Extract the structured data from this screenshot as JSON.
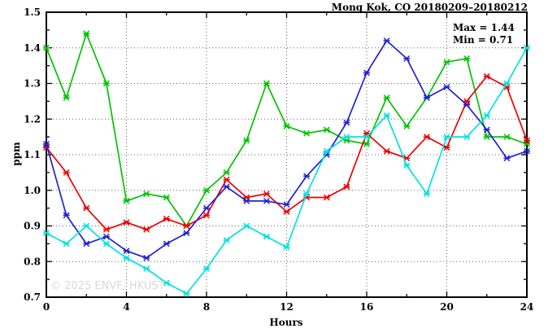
{
  "title": "Mong Kok, CO 20180209–20180212",
  "annotation": {
    "max_label": "Max = 1.44",
    "min_label": "Min = 0.71"
  },
  "watermark": "© 2025  ENVF, HKUST",
  "axes": {
    "xlabel": "Hours",
    "ylabel": "ppm",
    "x_tick_labels": [
      "0",
      "4",
      "8",
      "12",
      "16",
      "20",
      "24"
    ],
    "y_tick_labels": [
      "0.7",
      "0.8",
      "0.9",
      "1.0",
      "1.1",
      "1.2",
      "1.3",
      "1.4",
      "1.5"
    ]
  },
  "chart_data": {
    "type": "line",
    "title": "Mong Kok, CO 20180209–20180212",
    "xlabel": "Hours",
    "ylabel": "ppm",
    "xlim": [
      0,
      24
    ],
    "ylim": [
      0.7,
      1.5
    ],
    "x_major_ticks": [
      0,
      4,
      8,
      12,
      16,
      20,
      24
    ],
    "x_minor_step": 2,
    "y_major_step": 0.1,
    "y_minor_step": 0.05,
    "grid": true,
    "legend": "none",
    "annotations": [
      "Max = 1.44",
      "Min = 0.71"
    ],
    "x": [
      0,
      1,
      2,
      3,
      4,
      5,
      6,
      7,
      8,
      9,
      10,
      11,
      12,
      13,
      14,
      15,
      16,
      17,
      18,
      19,
      20,
      21,
      22,
      23,
      24
    ],
    "series": [
      {
        "name": "green",
        "color": "#00c400",
        "values": [
          1.4,
          1.26,
          1.44,
          1.3,
          0.97,
          0.99,
          0.98,
          0.9,
          1.0,
          1.05,
          1.14,
          1.3,
          1.18,
          1.16,
          1.17,
          1.14,
          1.13,
          1.26,
          1.18,
          1.26,
          1.36,
          1.37,
          1.15,
          1.15,
          1.13
        ]
      },
      {
        "name": "red",
        "color": "#ee0000",
        "values": [
          1.12,
          1.05,
          0.95,
          0.89,
          0.91,
          0.89,
          0.92,
          0.9,
          0.93,
          1.03,
          0.98,
          0.99,
          0.94,
          0.98,
          0.98,
          1.01,
          1.16,
          1.11,
          1.09,
          1.15,
          1.12,
          1.25,
          1.32,
          1.29,
          1.14
        ]
      },
      {
        "name": "blue",
        "color": "#2121d5",
        "values": [
          1.13,
          0.93,
          0.85,
          0.87,
          0.83,
          0.81,
          0.85,
          0.88,
          0.95,
          1.01,
          0.97,
          0.97,
          0.96,
          1.04,
          1.1,
          1.19,
          1.33,
          1.42,
          1.37,
          1.26,
          1.29,
          1.24,
          1.17,
          1.09,
          1.11
        ]
      },
      {
        "name": "cyan",
        "color": "#00e2e2",
        "values": [
          0.88,
          0.85,
          0.9,
          0.85,
          0.81,
          0.78,
          0.74,
          0.71,
          0.78,
          0.86,
          0.9,
          0.87,
          0.84,
          0.99,
          1.11,
          1.15,
          1.15,
          1.21,
          1.07,
          0.99,
          1.15,
          1.15,
          1.21,
          1.3,
          1.4
        ]
      }
    ]
  }
}
